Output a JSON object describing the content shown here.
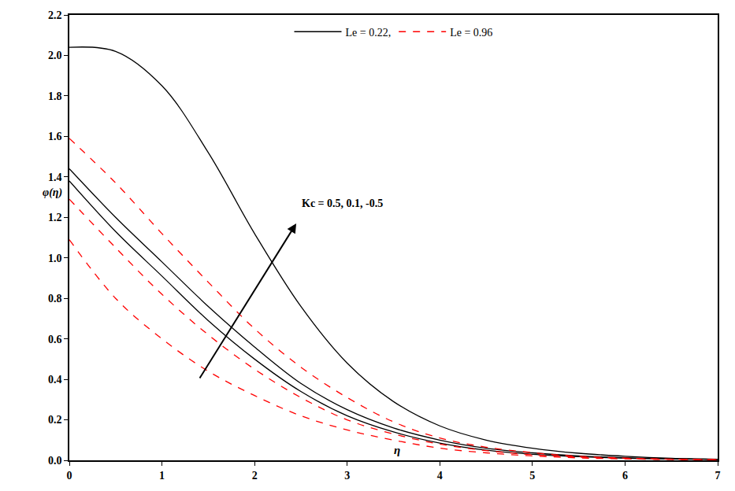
{
  "chart_data": {
    "type": "line",
    "x_label": "η",
    "y_label": "φ(η)",
    "x": [
      0,
      0.5,
      1,
      1.5,
      2,
      2.5,
      3,
      3.5,
      4,
      4.5,
      5,
      5.5,
      6,
      6.5,
      7
    ],
    "series": [
      {
        "name": "Le = 0.22,",
        "color": "#000000",
        "line_style": "solid",
        "values": [
          2.04,
          2.02,
          1.85,
          1.52,
          1.12,
          0.76,
          0.48,
          0.29,
          0.17,
          0.1,
          0.06,
          0.035,
          0.02,
          0.01,
          0.005
        ]
      },
      {
        "name": "Le = 0.22,",
        "color": "#000000",
        "line_style": "solid",
        "values": [
          1.44,
          1.2,
          0.98,
          0.76,
          0.56,
          0.38,
          0.25,
          0.16,
          0.1,
          0.06,
          0.037,
          0.022,
          0.013,
          0.008,
          0.005
        ]
      },
      {
        "name": "Le = 0.22,",
        "color": "#000000",
        "line_style": "solid",
        "values": [
          1.38,
          1.13,
          0.91,
          0.69,
          0.5,
          0.34,
          0.22,
          0.14,
          0.085,
          0.05,
          0.03,
          0.018,
          0.01,
          0.006,
          0.004
        ]
      },
      {
        "name": "Le = 0.96",
        "color": "#ff0000",
        "line_style": "dash",
        "values": [
          1.59,
          1.37,
          1.12,
          0.88,
          0.65,
          0.46,
          0.31,
          0.19,
          0.11,
          0.065,
          0.038,
          0.02,
          0.011,
          0.006,
          0.003
        ]
      },
      {
        "name": "Le = 0.96",
        "color": "#ff0000",
        "line_style": "dash",
        "values": [
          1.29,
          1.05,
          0.82,
          0.62,
          0.45,
          0.31,
          0.2,
          0.13,
          0.08,
          0.048,
          0.028,
          0.016,
          0.009,
          0.005,
          0.003
        ]
      },
      {
        "name": "Le = 0.96",
        "color": "#ff0000",
        "line_style": "dash",
        "values": [
          1.09,
          0.8,
          0.6,
          0.44,
          0.32,
          0.22,
          0.15,
          0.1,
          0.06,
          0.037,
          0.022,
          0.012,
          0.007,
          0.004,
          0.002
        ]
      }
    ],
    "annotations": [
      {
        "text": "Kc = 0.5, 0.1, -0.5",
        "x": 2.95,
        "y": 1.27,
        "arrow": {
          "from": [
            1.4,
            0.4
          ],
          "to": [
            2.45,
            1.17
          ]
        }
      }
    ],
    "xlim": [
      0,
      7
    ],
    "xticks": [
      0,
      1,
      2,
      3,
      4,
      5,
      6,
      7
    ],
    "ylim": [
      0,
      2.2
    ],
    "yticks": [
      {
        "value": 0,
        "label": "0.0"
      },
      0.2,
      0.4,
      0.6,
      0.8,
      {
        "value": 1,
        "label": "1.0"
      },
      1.2,
      1.4,
      1.6,
      1.8,
      {
        "value": 2,
        "label": "2.0"
      },
      2.2
    ],
    "grid": false,
    "legend": "upper center"
  }
}
